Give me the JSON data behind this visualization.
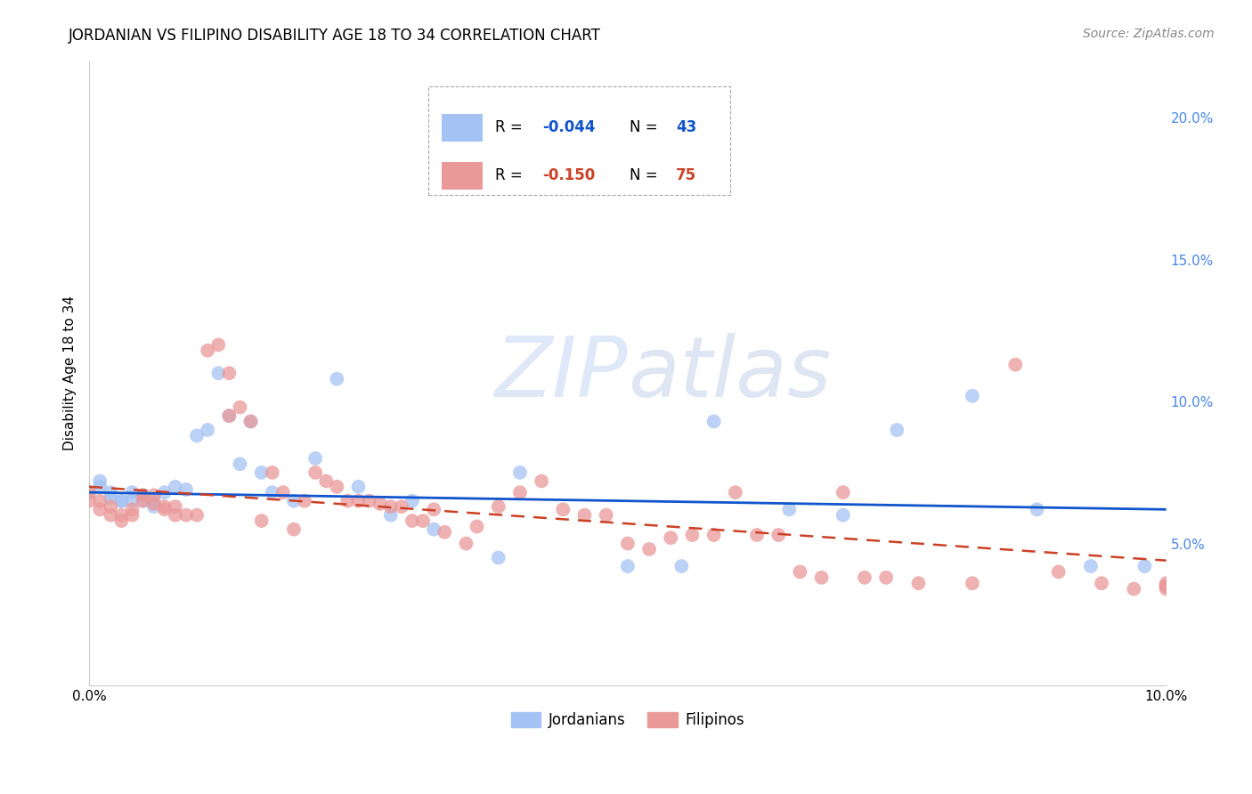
{
  "title": "JORDANIAN VS FILIPINO DISABILITY AGE 18 TO 34 CORRELATION CHART",
  "source": "Source: ZipAtlas.com",
  "ylabel": "Disability Age 18 to 34",
  "xlim": [
    0.0,
    0.1
  ],
  "ylim": [
    0.0,
    0.22
  ],
  "jordanian_color": "#a4c2f4",
  "filipino_color": "#ea9999",
  "trendline_jordan_color": "#1155cc",
  "trendline_filipino_color": "#cc4125",
  "tick_color": "#4a86e8",
  "watermark_color": "#d0dff7",
  "background_color": "#ffffff",
  "jordanian_x": [
    0.0,
    0.001,
    0.001,
    0.002,
    0.002,
    0.003,
    0.003,
    0.004,
    0.004,
    0.005,
    0.005,
    0.006,
    0.006,
    0.007,
    0.008,
    0.009,
    0.01,
    0.011,
    0.012,
    0.013,
    0.014,
    0.015,
    0.016,
    0.017,
    0.019,
    0.021,
    0.023,
    0.025,
    0.028,
    0.03,
    0.032,
    0.038,
    0.04,
    0.05,
    0.055,
    0.058,
    0.065,
    0.07,
    0.075,
    0.082,
    0.088,
    0.093,
    0.098
  ],
  "jordanian_y": [
    0.068,
    0.072,
    0.07,
    0.068,
    0.066,
    0.065,
    0.065,
    0.068,
    0.065,
    0.067,
    0.065,
    0.063,
    0.065,
    0.068,
    0.07,
    0.069,
    0.088,
    0.09,
    0.11,
    0.095,
    0.078,
    0.093,
    0.075,
    0.068,
    0.065,
    0.08,
    0.108,
    0.07,
    0.06,
    0.065,
    0.055,
    0.045,
    0.075,
    0.042,
    0.042,
    0.093,
    0.062,
    0.06,
    0.09,
    0.102,
    0.062,
    0.042,
    0.042
  ],
  "filipino_x": [
    0.0,
    0.0,
    0.001,
    0.001,
    0.002,
    0.002,
    0.003,
    0.003,
    0.004,
    0.004,
    0.005,
    0.005,
    0.006,
    0.006,
    0.007,
    0.007,
    0.008,
    0.008,
    0.009,
    0.01,
    0.011,
    0.012,
    0.013,
    0.013,
    0.014,
    0.015,
    0.016,
    0.017,
    0.018,
    0.019,
    0.02,
    0.021,
    0.022,
    0.023,
    0.024,
    0.025,
    0.026,
    0.027,
    0.028,
    0.029,
    0.03,
    0.031,
    0.032,
    0.033,
    0.035,
    0.036,
    0.038,
    0.04,
    0.042,
    0.044,
    0.046,
    0.048,
    0.05,
    0.052,
    0.054,
    0.056,
    0.058,
    0.06,
    0.062,
    0.064,
    0.066,
    0.068,
    0.07,
    0.072,
    0.074,
    0.077,
    0.082,
    0.086,
    0.09,
    0.094,
    0.097,
    0.1,
    0.1,
    0.1,
    0.1
  ],
  "filipino_y": [
    0.068,
    0.065,
    0.065,
    0.062,
    0.063,
    0.06,
    0.06,
    0.058,
    0.062,
    0.06,
    0.067,
    0.065,
    0.067,
    0.064,
    0.063,
    0.062,
    0.063,
    0.06,
    0.06,
    0.06,
    0.118,
    0.12,
    0.11,
    0.095,
    0.098,
    0.093,
    0.058,
    0.075,
    0.068,
    0.055,
    0.065,
    0.075,
    0.072,
    0.07,
    0.065,
    0.065,
    0.065,
    0.064,
    0.063,
    0.063,
    0.058,
    0.058,
    0.062,
    0.054,
    0.05,
    0.056,
    0.063,
    0.068,
    0.072,
    0.062,
    0.06,
    0.06,
    0.05,
    0.048,
    0.052,
    0.053,
    0.053,
    0.068,
    0.053,
    0.053,
    0.04,
    0.038,
    0.068,
    0.038,
    0.038,
    0.036,
    0.036,
    0.113,
    0.04,
    0.036,
    0.034,
    0.034,
    0.035,
    0.035,
    0.036
  ]
}
